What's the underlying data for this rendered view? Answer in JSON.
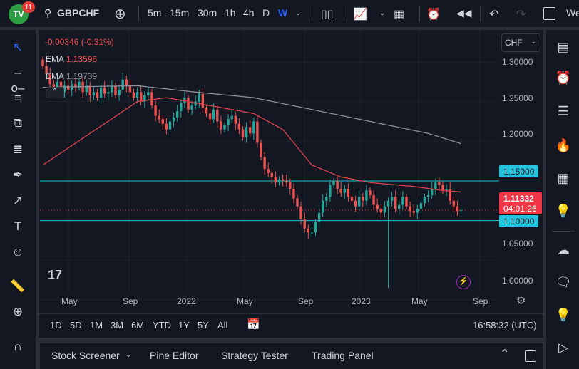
{
  "topbar": {
    "logo": "TV",
    "notifications": "11",
    "symbol": "GBPCHF",
    "intervals": [
      "5m",
      "15m",
      "30m",
      "1h",
      "4h",
      "D",
      "W"
    ],
    "active_interval": "W",
    "partial_text": "We"
  },
  "legend": {
    "change": "-0.00346 (-0.31%)",
    "ema1_label": "EMA",
    "ema1_value": "1.13596",
    "ema2_label": "EMA",
    "ema2_value": "1.19739"
  },
  "currency": "CHF",
  "price_axis": {
    "labels": [
      "1.30000",
      "1.25000",
      "1.20000",
      "1.15000",
      "1.10000",
      "1.05000",
      "1.00000"
    ],
    "current_price": "1.11332",
    "countdown": "04:01:26",
    "level_1": "1.15000",
    "level_2": "1.10000"
  },
  "time_axis": [
    "May",
    "Sep",
    "2022",
    "May",
    "Sep",
    "2023",
    "May",
    "Sep"
  ],
  "ranges": [
    "1D",
    "5D",
    "1M",
    "3M",
    "6M",
    "YTD",
    "1Y",
    "5Y",
    "All"
  ],
  "clock": "16:58:32 (UTC)",
  "bottom_tabs": [
    "Stock Screener",
    "Pine Editor",
    "Strategy Tester",
    "Trading Panel"
  ],
  "colors": {
    "up": "#26a69a",
    "down": "#ef5350",
    "level": "#22c3dc",
    "ema_fast": "#e0434f",
    "ema_slow": "#8c8f99",
    "accent": "#2962ff"
  },
  "chart_data": {
    "type": "candlestick",
    "ylim": [
      0.98,
      1.32
    ],
    "horizontal_levels": [
      1.15,
      1.1
    ],
    "current": 1.11332,
    "spike_low": {
      "index": 95,
      "value": 1.015
    },
    "closes": [
      1.295,
      1.285,
      1.272,
      1.268,
      1.275,
      1.262,
      1.27,
      1.265,
      1.272,
      1.268,
      1.275,
      1.262,
      1.27,
      1.258,
      1.262,
      1.255,
      1.268,
      1.26,
      1.262,
      1.27,
      1.258,
      1.265,
      1.278,
      1.27,
      1.262,
      1.255,
      1.262,
      1.25,
      1.258,
      1.262,
      1.245,
      1.232,
      1.228,
      1.222,
      1.215,
      1.225,
      1.23,
      1.238,
      1.248,
      1.255,
      1.24,
      1.245,
      1.25,
      1.26,
      1.242,
      1.235,
      1.228,
      1.24,
      1.225,
      1.215,
      1.22,
      1.228,
      1.232,
      1.222,
      1.215,
      1.205,
      1.218,
      1.21,
      1.225,
      1.198,
      1.18,
      1.165,
      1.16,
      1.155,
      1.148,
      1.152,
      1.15,
      1.148,
      1.14,
      1.128,
      1.118,
      1.102,
      1.09,
      1.085,
      1.085,
      1.098,
      1.11,
      1.125,
      1.13,
      1.145,
      1.15,
      1.14,
      1.135,
      1.14,
      1.13,
      1.125,
      1.118,
      1.13,
      1.125,
      1.138,
      1.132,
      1.12,
      1.115,
      1.11,
      1.118,
      1.125,
      1.13,
      1.115,
      1.12,
      1.13,
      1.118,
      1.112,
      1.11,
      1.115,
      1.122,
      1.13,
      1.132,
      1.14,
      1.148,
      1.145,
      1.138,
      1.14,
      1.125,
      1.118,
      1.112,
      1.113
    ],
    "ema_fast": [
      [
        0,
        1.17
      ],
      [
        26,
        1.25
      ],
      [
        34,
        1.255
      ],
      [
        46,
        1.245
      ],
      [
        58,
        1.235
      ],
      [
        66,
        1.215
      ],
      [
        74,
        1.17
      ],
      [
        82,
        1.155
      ],
      [
        90,
        1.148
      ],
      [
        102,
        1.143
      ],
      [
        110,
        1.138
      ],
      [
        115,
        1.136
      ]
    ],
    "ema_slow": [
      [
        0,
        1.268
      ],
      [
        26,
        1.27
      ],
      [
        42,
        1.262
      ],
      [
        58,
        1.255
      ],
      [
        74,
        1.24
      ],
      [
        90,
        1.225
      ],
      [
        106,
        1.21
      ],
      [
        115,
        1.197
      ]
    ]
  }
}
